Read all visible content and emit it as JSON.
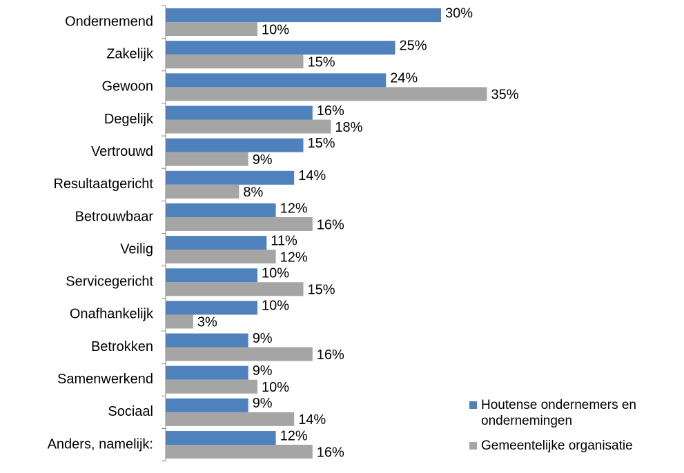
{
  "chart_data": {
    "type": "hbar",
    "categories": [
      "Ondernemend",
      "Zakelijk",
      "Gewoon",
      "Degelijk",
      "Vertrouwd",
      "Resultaatgericht",
      "Betrouwbaar",
      "Veilig",
      "Servicegericht",
      "Onafhankelijk",
      "Betrokken",
      "Samenwerkend",
      "Sociaal",
      "Anders, namelijk:"
    ],
    "series": [
      {
        "name": "Houtense ondernemers en ondernemingen",
        "color": "#4f81bd",
        "values": [
          30,
          25,
          24,
          16,
          15,
          14,
          12,
          11,
          10,
          10,
          9,
          9,
          9,
          12
        ],
        "value_labels": [
          "30%",
          "25%",
          "24%",
          "16%",
          "15%",
          "14%",
          "12%",
          "11%",
          "10%",
          "10%",
          "9%",
          "9%",
          "9%",
          "12%"
        ]
      },
      {
        "name": "Gemeentelijke organisatie",
        "color": "#a5a5a5",
        "values": [
          10,
          15,
          35,
          18,
          9,
          8,
          16,
          12,
          15,
          3,
          16,
          10,
          14,
          16
        ],
        "value_labels": [
          "10%",
          "15%",
          "35%",
          "18%",
          "9%",
          "8%",
          "16%",
          "12%",
          "15%",
          "3%",
          "16%",
          "10%",
          "14%",
          "16%"
        ]
      }
    ],
    "xlim": [
      0,
      40
    ],
    "legend": "bottom-right"
  }
}
